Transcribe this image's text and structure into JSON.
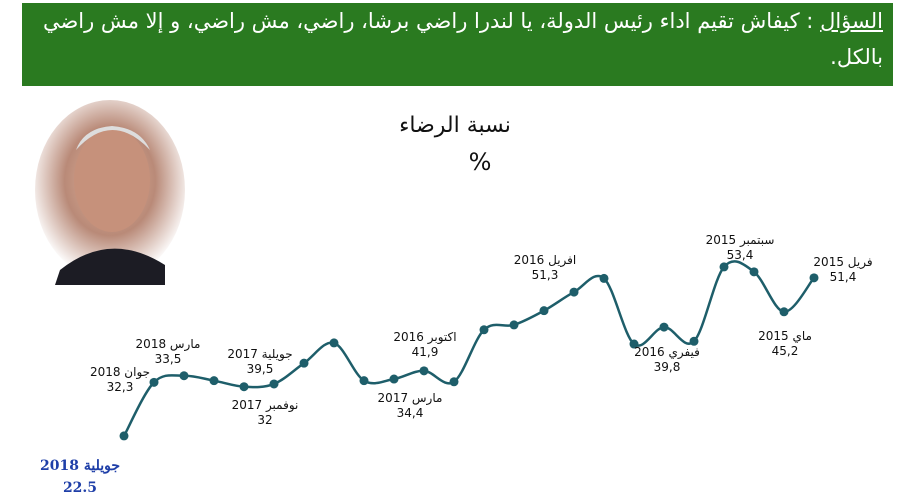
{
  "header": {
    "label": "السؤال",
    "text": ": كيفاش تقيم اداء  رئيس الدولة، يا لندرا راضي برشا، راضي، مش راضي، و إلا مش راضي بالكل."
  },
  "chart_data": {
    "type": "line",
    "title": "نسبة الرضاء",
    "subtitle": "%",
    "categories": [
      "جويلية 2018",
      "جوان 2018",
      "مارس 2018",
      null,
      null,
      "نوفمبر 2017",
      null,
      "جويلية 2017",
      null,
      null,
      "مارس 2017",
      null,
      "اكتوبر 2016",
      null,
      null,
      null,
      "افريل 2016",
      null,
      null,
      "فيفري 2016",
      "سبتمبر 2015",
      null,
      "ماي 2015",
      "فريل 2015"
    ],
    "series": [
      {
        "name": null,
        "color": "#1e5e6a",
        "values": [
          22.5,
          32.3,
          33.5,
          32.6,
          31.5,
          32,
          35.8,
          39.5,
          32.6,
          32.9,
          34.4,
          32.4,
          41.9,
          42.8,
          45.4,
          48.8,
          51.3,
          39.3,
          42.4,
          39.8,
          53.4,
          52.5,
          45.2,
          51.4
        ],
        "value_labels": [
          "22.5",
          "32,3",
          "33,5",
          null,
          null,
          "32",
          null,
          "39,5",
          null,
          null,
          "34,4",
          null,
          "41,9",
          null,
          null,
          null,
          "51,3",
          null,
          null,
          "39,8",
          "53,4",
          null,
          "45,2",
          "51,4"
        ]
      }
    ]
  }
}
